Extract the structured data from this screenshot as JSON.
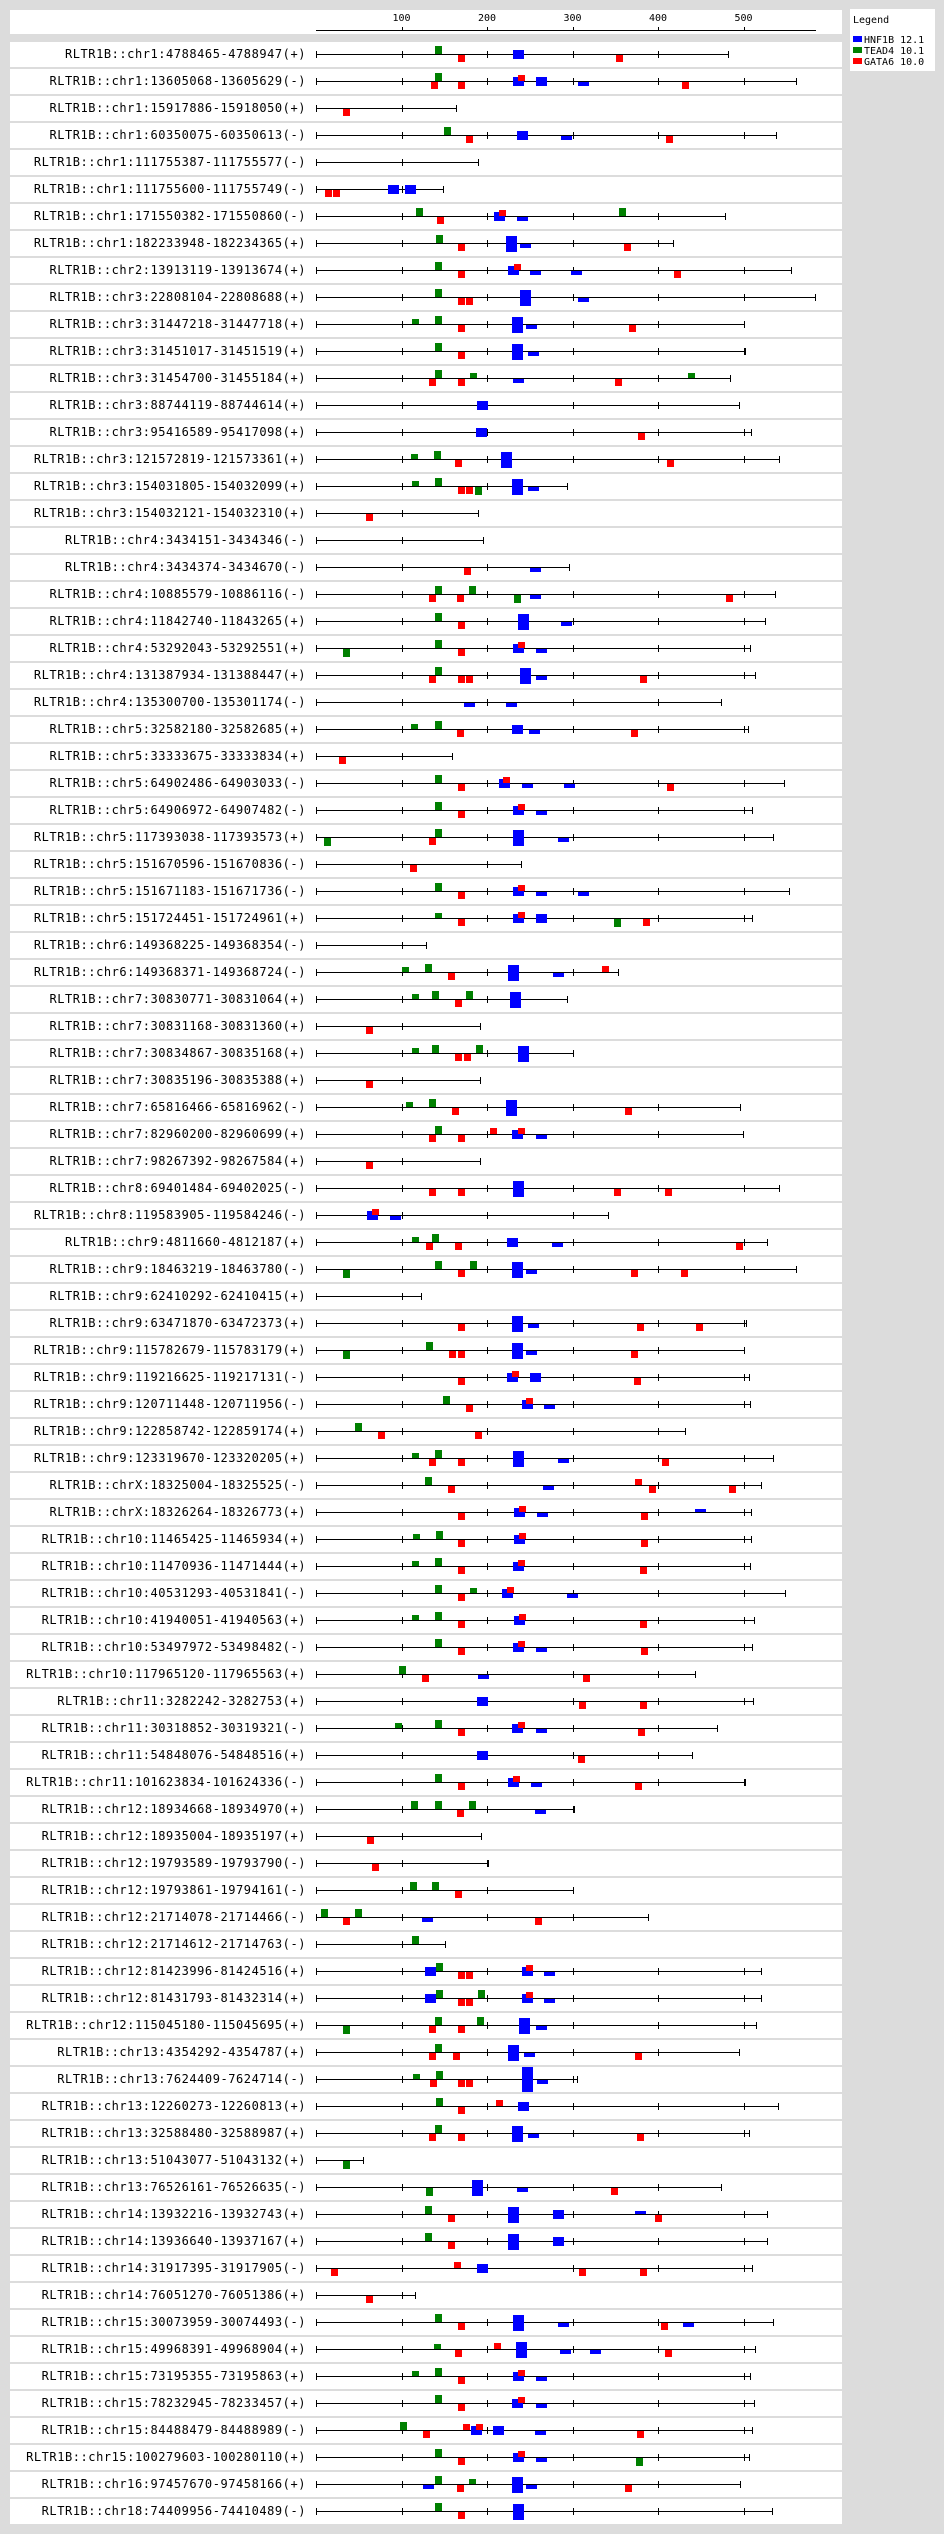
{
  "legend": {
    "title": "Legend",
    "items": [
      {
        "code": "H",
        "label": "HNF1B 12.1",
        "color": "#0000ff"
      },
      {
        "code": "T",
        "label": "TEAD4 10.1",
        "color": "#008000"
      },
      {
        "code": "G",
        "label": "GATA6 10.0",
        "color": "#ff0000"
      }
    ]
  },
  "axis": {
    "ticks": [
      "100",
      "200",
      "300",
      "400",
      "500"
    ],
    "max_bp": 585
  },
  "rows": [
    {
      "label": "RLTR1B::chr1:4788465-4788947(+)",
      "motifs": [
        "Hc230",
        "G-166",
        "G-351",
        "T+139"
      ]
    },
    {
      "label": "RLTR1B::chr1:13605068-13605629(-)",
      "motifs": [
        "Hc230",
        "Hc257",
        "H-306",
        "G-135",
        "G-166",
        "G+236",
        "G-428",
        "T+139"
      ]
    },
    {
      "label": "RLTR1B::chr1:15917886-15918050(+)",
      "motifs": [
        "G-32"
      ]
    },
    {
      "label": "RLTR1B::chr1:60350075-60350613(-)",
      "motifs": [
        "Hc235",
        "H-286",
        "G-175",
        "G-409",
        "T+150"
      ]
    },
    {
      "label": "RLTR1B::chr1:111755387-111755577(-)",
      "motifs": []
    },
    {
      "label": "RLTR1B::chr1:111755600-111755749(-)",
      "motifs": [
        "Hc84",
        "Hc104",
        "G-10",
        "G-20"
      ]
    },
    {
      "label": "RLTR1B::chr1:171550382-171550860(-)",
      "motifs": [
        "Hc208",
        "H-235",
        "G-142",
        "G+214",
        "T+117",
        "T+354"
      ]
    },
    {
      "label": "RLTR1B::chr1:182233948-182234365(+)",
      "motifs": [
        "Hcc222",
        "H-239",
        "G-166",
        "G-360",
        "T+140"
      ]
    },
    {
      "label": "RLTR1B::chr2:13913119-13913674(+)",
      "motifs": [
        "Hc225",
        "H-250",
        "H-298",
        "G-166",
        "G+231",
        "G-419",
        "T+139"
      ]
    },
    {
      "label": "RLTR1B::chr3:22808104-22808688(+)",
      "motifs": [
        "Hcc239",
        "H-306",
        "G-166",
        "G-175",
        "T+139"
      ]
    },
    {
      "label": "RLTR1B::chr3:31447218-31447718(+)",
      "motifs": [
        "Hcc229",
        "H-246",
        "G-166",
        "G-366",
        "Ts112",
        "T+139"
      ]
    },
    {
      "label": "RLTR1B::chr3:31451017-31451519(+)",
      "motifs": [
        "Hcc229",
        "H-248",
        "G-166",
        "T+139"
      ]
    },
    {
      "label": "RLTR1B::chr3:31454700-31455184(+)",
      "motifs": [
        "H-230",
        "G-132",
        "G-166",
        "G-350",
        "T+139",
        "Ts180",
        "Ts435"
      ]
    },
    {
      "label": "RLTR1B::chr3:88744119-88744614(+)",
      "motifs": [
        "Hc188"
      ]
    },
    {
      "label": "RLTR1B::chr3:95416589-95417098(+)",
      "motifs": [
        "Hc187",
        "G-377"
      ]
    },
    {
      "label": "RLTR1B::chr3:121572819-121573361(+)",
      "motifs": [
        "Hcc216",
        "G-163",
        "G-410",
        "Ts111",
        "T+138"
      ]
    },
    {
      "label": "RLTR1B::chr3:154031805-154032099(+)",
      "motifs": [
        "Hcc229",
        "H-248",
        "G-166",
        "G-175",
        "Ts112",
        "T+139",
        "T-186"
      ]
    },
    {
      "label": "RLTR1B::chr3:154032121-154032310(+)",
      "motifs": [
        "G-58"
      ]
    },
    {
      "label": "RLTR1B::chr4:3434151-3434346(-)",
      "motifs": []
    },
    {
      "label": "RLTR1B::chr4:3434374-3434670(-)",
      "motifs": [
        "H-250",
        "G-173"
      ]
    },
    {
      "label": "RLTR1B::chr4:10885579-10886116(-)",
      "motifs": [
        "H-250",
        "G-132",
        "G-165",
        "G-479",
        "T+139",
        "T+179",
        "T-231"
      ]
    },
    {
      "label": "RLTR1B::chr4:11842740-11843265(+)",
      "motifs": [
        "Hcc236",
        "H-287",
        "G-166",
        "T+139"
      ]
    },
    {
      "label": "RLTR1B::chr4:53292043-53292551(+)",
      "motifs": [
        "Hc230",
        "H-257",
        "G-166",
        "G+236",
        "T+139",
        "T-32"
      ]
    },
    {
      "label": "RLTR1B::chr4:131387934-131388447(+)",
      "motifs": [
        "Hcc239",
        "H-257",
        "G-132",
        "G-166",
        "G-175",
        "G-379",
        "T+139"
      ]
    },
    {
      "label": "RLTR1B::chr4:135300700-135301174(-)",
      "motifs": [
        "H-173",
        "H-222"
      ]
    },
    {
      "label": "RLTR1B::chr5:32582180-32582685(+)",
      "motifs": [
        "Hc229",
        "H-249",
        "G-165",
        "G-369",
        "Ts111",
        "T+139"
      ]
    },
    {
      "label": "RLTR1B::chr5:33333675-33333834(+)",
      "motifs": [
        "G-27"
      ]
    },
    {
      "label": "RLTR1B::chr5:64902486-64903033(-)",
      "motifs": [
        "Hc214",
        "H-241",
        "H-290",
        "G-166",
        "G+219",
        "G-410",
        "T+139"
      ]
    },
    {
      "label": "RLTR1B::chr5:64906972-64907482(-)",
      "motifs": [
        "Hc230",
        "H-257",
        "G-166",
        "G+236",
        "T+139"
      ]
    },
    {
      "label": "RLTR1B::chr5:117393038-117393573(+)",
      "motifs": [
        "Hcc230",
        "H-283",
        "G-132",
        "T+139",
        "T-9"
      ]
    },
    {
      "label": "RLTR1B::chr5:151670596-151670836(-)",
      "motifs": [
        "G-110"
      ]
    },
    {
      "label": "RLTR1B::chr5:151671183-151671736(-)",
      "motifs": [
        "Hc230",
        "H-257",
        "H-306",
        "G-166",
        "G+236",
        "T+139"
      ]
    },
    {
      "label": "RLTR1B::chr5:151724451-151724961(+)",
      "motifs": [
        "Hc230",
        "Hc257",
        "G-166",
        "G+236",
        "G-382",
        "Ts139",
        "T-348"
      ]
    },
    {
      "label": "RLTR1B::chr6:149368225-149368354(-)",
      "motifs": []
    },
    {
      "label": "RLTR1B::chr6:149368371-149368724(-)",
      "motifs": [
        "Hcc224",
        "H-277",
        "G-154",
        "G+335",
        "Ts101",
        "T+128"
      ]
    },
    {
      "label": "RLTR1B::chr7:30830771-30831064(+)",
      "motifs": [
        "Hcc227",
        "G-162",
        "Ts112",
        "T+136",
        "T+176"
      ]
    },
    {
      "label": "RLTR1B::chr7:30831168-30831360(+)",
      "motifs": [
        "G-58"
      ]
    },
    {
      "label": "RLTR1B::chr7:30834867-30835168(+)",
      "motifs": [
        "Hcc236",
        "G-162",
        "G-173",
        "Ts112",
        "T+136",
        "T+187"
      ]
    },
    {
      "label": "RLTR1B::chr7:30835196-30835388(+)",
      "motifs": [
        "G-58"
      ]
    },
    {
      "label": "RLTR1B::chr7:65816466-65816962(-)",
      "motifs": [
        "Hcc222",
        "G-159",
        "G-361",
        "Ts105",
        "T+132"
      ]
    },
    {
      "label": "RLTR1B::chr7:82960200-82960699(+)",
      "motifs": [
        "Hc229",
        "H-257",
        "G-132",
        "G-166",
        "G+203",
        "G+236",
        "T+139"
      ]
    },
    {
      "label": "RLTR1B::chr7:98267392-98267584(+)",
      "motifs": [
        "G-58"
      ]
    },
    {
      "label": "RLTR1B::chr8:69401484-69402025(-)",
      "motifs": [
        "Hcc230",
        "G-132",
        "G-166",
        "G-348",
        "G-408"
      ]
    },
    {
      "label": "RLTR1B::chr8:119583905-119584246(-)",
      "motifs": [
        "Hc60",
        "H-87",
        "G+66"
      ]
    },
    {
      "label": "RLTR1B::chr9:4811660-4812187(+)",
      "motifs": [
        "Hc223",
        "H-276",
        "G-129",
        "G-162",
        "G-491",
        "Ts112",
        "T+136"
      ]
    },
    {
      "label": "RLTR1B::chr9:18463219-18463780(-)",
      "motifs": [
        "Hcc229",
        "H-246",
        "G-166",
        "G-368",
        "G-427",
        "T+139",
        "T+180",
        "T-32"
      ]
    },
    {
      "label": "RLTR1B::chr9:62410292-62410415(+)",
      "motifs": []
    },
    {
      "label": "RLTR1B::chr9:63471870-63472373(+)",
      "motifs": [
        "Hcc229",
        "H-248",
        "G-166",
        "G-375",
        "G-445"
      ]
    },
    {
      "label": "RLTR1B::chr9:115782679-115783179(+)",
      "motifs": [
        "Hcc229",
        "H-246",
        "G-155",
        "G-166",
        "G-368",
        "T+129",
        "T-32"
      ]
    },
    {
      "label": "RLTR1B::chr9:119216625-119217131(-)",
      "motifs": [
        "Hc223",
        "Hc250",
        "G-166",
        "G+229",
        "G-372"
      ]
    },
    {
      "label": "RLTR1B::chr9:120711448-120711956(-)",
      "motifs": [
        "Hc241",
        "H-267",
        "G-175",
        "G+246",
        "T+149"
      ]
    },
    {
      "label": "RLTR1B::chr9:122858742-122859174(+)",
      "motifs": [
        "G-72",
        "G-186",
        "T+46"
      ]
    },
    {
      "label": "RLTR1B::chr9:123319670-123320205(+)",
      "motifs": [
        "Hcc230",
        "H-283",
        "G-132",
        "G-166",
        "G-405",
        "Ts112",
        "T+139"
      ]
    },
    {
      "label": "RLTR1B::chrX:18325004-18325525(-)",
      "motifs": [
        "H-266",
        "G-154",
        "G+373",
        "G-389",
        "G-483",
        "T+128"
      ]
    },
    {
      "label": "RLTR1B::chrX:18326264-18326773(+)",
      "motifs": [
        "Hc231",
        "H-258",
        "H+443",
        "G-166",
        "G+237",
        "G-380"
      ]
    },
    {
      "label": "RLTR1B::chr10:11465425-11465934(+)",
      "motifs": [
        "Hc231",
        "G-166",
        "G+237",
        "G-380",
        "Ts113",
        "T+140"
      ]
    },
    {
      "label": "RLTR1B::chr10:11470936-11471444(+)",
      "motifs": [
        "Hc230",
        "G-166",
        "G+236",
        "G-379",
        "Ts112",
        "T+139"
      ]
    },
    {
      "label": "RLTR1B::chr10:40531293-40531841(-)",
      "motifs": [
        "Hc217",
        "H-293",
        "G-166",
        "G+223",
        "T+139",
        "Ts180"
      ]
    },
    {
      "label": "RLTR1B::chr10:41940051-41940563(+)",
      "motifs": [
        "Hc231",
        "G-166",
        "G+237",
        "G-379",
        "Ts112",
        "T+139"
      ]
    },
    {
      "label": "RLTR1B::chr10:53497972-53498482(-)",
      "motifs": [
        "Hc230",
        "H-257",
        "G-166",
        "G+236",
        "G-380",
        "T+139"
      ]
    },
    {
      "label": "RLTR1B::chr10:117965120-117965563(+)",
      "motifs": [
        "H-190",
        "G-124",
        "G-312",
        "T+97"
      ]
    },
    {
      "label": "RLTR1B::chr11:3282242-3282753(+)",
      "motifs": [
        "Hc188",
        "G-308",
        "G-379"
      ]
    },
    {
      "label": "RLTR1B::chr11:30318852-30319321(-)",
      "motifs": [
        "Hc229",
        "H-257",
        "G-166",
        "G+236",
        "G-377",
        "Ts92",
        "T+139"
      ]
    },
    {
      "label": "RLTR1B::chr11:54848076-54848516(+)",
      "motifs": [
        "Hc188",
        "G-307"
      ]
    },
    {
      "label": "RLTR1B::chr11:101623834-101624336(-)",
      "motifs": [
        "Hc224",
        "H-251",
        "G-166",
        "G+230",
        "G-373",
        "T+139"
      ]
    },
    {
      "label": "RLTR1B::chr12:18934668-18934970(+)",
      "motifs": [
        "H-256",
        "G-165",
        "T+111",
        "T+139",
        "T+179"
      ]
    },
    {
      "label": "RLTR1B::chr12:18935004-18935197(+)",
      "motifs": [
        "G-60"
      ]
    },
    {
      "label": "RLTR1B::chr12:19793589-19793790(-)",
      "motifs": [
        "G-66"
      ]
    },
    {
      "label": "RLTR1B::chr12:19793861-19794161(-)",
      "motifs": [
        "G-162",
        "T+110",
        "T+136"
      ]
    },
    {
      "label": "RLTR1B::chr12:21714078-21714466(-)",
      "motifs": [
        "H-124",
        "G-32",
        "G-256",
        "T+6",
        "T+46"
      ]
    },
    {
      "label": "RLTR1B::chr12:21714612-21714763(-)",
      "motifs": [
        "T+112"
      ]
    },
    {
      "label": "RLTR1B::chr12:81423996-81424516(+)",
      "motifs": [
        "Hc127",
        "Hc241",
        "H-267",
        "G-166",
        "G-176",
        "G+246",
        "T+140"
      ]
    },
    {
      "label": "RLTR1B::chr12:81431793-81432314(+)",
      "motifs": [
        "Hc127",
        "Hc241",
        "H-267",
        "G-166",
        "G-176",
        "G+246",
        "T+140",
        "T+190"
      ]
    },
    {
      "label": "RLTR1B::chr12:115045180-115045695(+)",
      "motifs": [
        "Hcc238",
        "H-257",
        "G-132",
        "G-166",
        "T+139",
        "T+188",
        "T-32"
      ]
    },
    {
      "label": "RLTR1B::chr13:4354292-4354787(+)",
      "motifs": [
        "Hcc224",
        "H-243",
        "G-132",
        "G-160",
        "G-373",
        "T+139"
      ]
    },
    {
      "label": "RLTR1B::chr13:7624409-7624714(-)",
      "motifs": [
        "Hccc241",
        "H-258",
        "G-133",
        "G-166",
        "G-176",
        "Ts113",
        "T+140"
      ]
    },
    {
      "label": "RLTR1B::chr13:12260273-12260813(+)",
      "motifs": [
        "Hc236",
        "G-166",
        "G+210",
        "T+140"
      ]
    },
    {
      "label": "RLTR1B::chr13:32588480-32588987(+)",
      "motifs": [
        "Hcc229",
        "H-248",
        "G-132",
        "G-166",
        "G-375",
        "T+139"
      ]
    },
    {
      "label": "RLTR1B::chr13:51043077-51043132(+)",
      "motifs": [
        "T-32"
      ]
    },
    {
      "label": "RLTR1B::chr13:76526161-76526635(-)",
      "motifs": [
        "Hcc182",
        "H-235",
        "G-345",
        "T-129"
      ]
    },
    {
      "label": "RLTR1B::chr14:13932216-13932743(+)",
      "motifs": [
        "Hcc224",
        "Hc277",
        "H+373",
        "G-154",
        "G-397",
        "T+128"
      ]
    },
    {
      "label": "RLTR1B::chr14:13936640-13937167(+)",
      "motifs": [
        "Hcc224",
        "Hc277",
        "G-154",
        "T+128"
      ]
    },
    {
      "label": "RLTR1B::chr14:31917395-31917905(-)",
      "motifs": [
        "Hc188",
        "G-18",
        "G+161",
        "G-308",
        "G-379"
      ]
    },
    {
      "label": "RLTR1B::chr14:76051270-76051386(+)",
      "motifs": [
        "G-58"
      ]
    },
    {
      "label": "RLTR1B::chr15:30073959-30074493(-)",
      "motifs": [
        "Hcc230",
        "H-283",
        "H-429",
        "G-166",
        "G-404",
        "T+139"
      ]
    },
    {
      "label": "RLTR1B::chr15:49968391-49968904(+)",
      "motifs": [
        "Hcc234",
        "H-285",
        "H-320",
        "G-163",
        "G+208",
        "G-408",
        "Ts138"
      ]
    },
    {
      "label": "RLTR1B::chr15:73195355-73195863(+)",
      "motifs": [
        "Hc230",
        "H-257",
        "G-166",
        "G+236",
        "Ts112",
        "T+139"
      ]
    },
    {
      "label": "RLTR1B::chr15:78232945-78233457(+)",
      "motifs": [
        "Hc229",
        "H-257",
        "G-166",
        "G+236",
        "T+139"
      ]
    },
    {
      "label": "RLTR1B::chr15:84488479-84488989(-)",
      "motifs": [
        "Hc181",
        "Hc207",
        "H-256",
        "G-125",
        "G+172",
        "G+187",
        "G-376",
        "T+98"
      ]
    },
    {
      "label": "RLTR1B::chr15:100279603-100280110(+)",
      "motifs": [
        "Hc230",
        "H-257",
        "G-166",
        "G+236",
        "T+139",
        "T-374"
      ]
    },
    {
      "label": "RLTR1B::chr16:97457670-97458166(+)",
      "motifs": [
        "H-125",
        "Hcc229",
        "H-246",
        "G-165",
        "G-361",
        "T+139",
        "Ts179"
      ]
    },
    {
      "label": "RLTR1B::chr18:74409956-74410489(-)",
      "motifs": [
        "Hcc230",
        "G-166",
        "T+139"
      ]
    }
  ]
}
